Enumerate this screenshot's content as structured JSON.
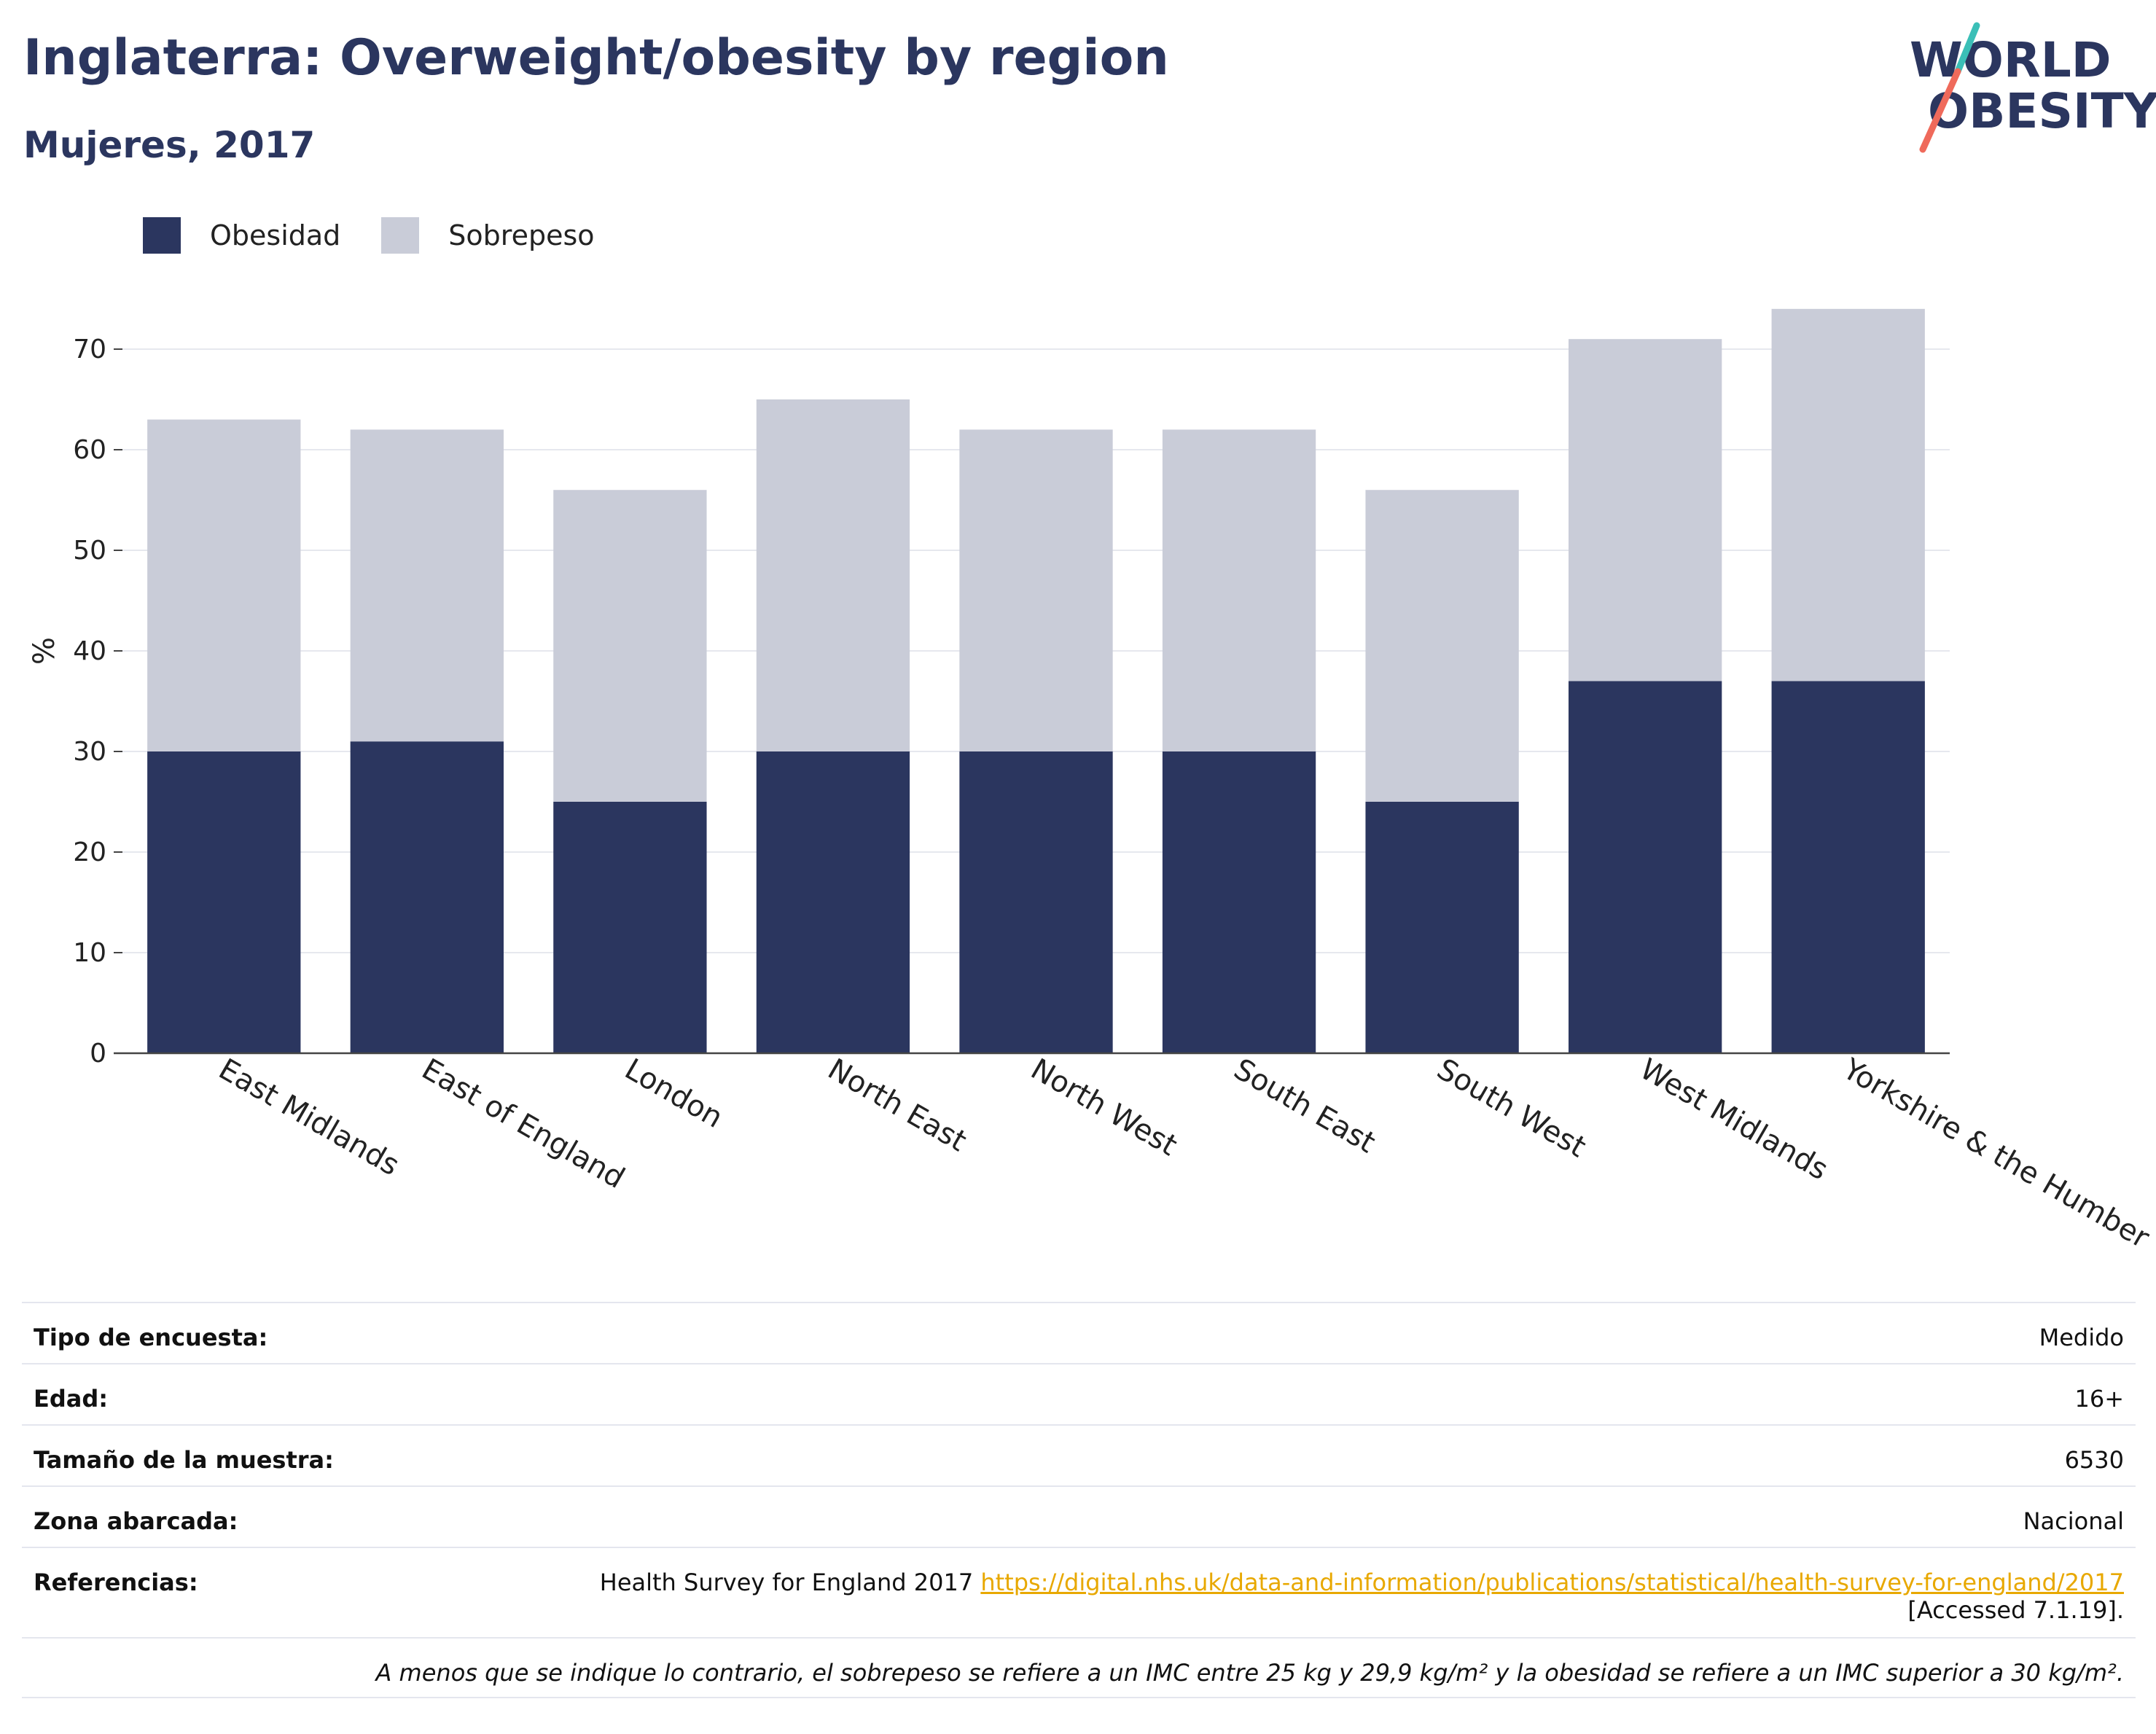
{
  "header": {
    "title": "Inglaterra: Overweight/obesity by region",
    "subtitle": "Mujeres, 2017"
  },
  "logo": {
    "line1": "WORLD",
    "line2": "OBESITY"
  },
  "legend": [
    {
      "label": "Obesidad",
      "color": "#2b365f"
    },
    {
      "label": "Sobrepeso",
      "color": "#c9ccd8"
    }
  ],
  "chart_data": {
    "type": "bar",
    "stacked": true,
    "categories": [
      "East Midlands",
      "East of England",
      "London",
      "North East",
      "North West",
      "South East",
      "South West",
      "West Midlands",
      "Yorkshire & the Humber"
    ],
    "series": [
      {
        "name": "Obesidad",
        "color": "#2b365f",
        "values": [
          30,
          31,
          25,
          30,
          30,
          30,
          25,
          37,
          37
        ]
      },
      {
        "name": "Sobrepeso",
        "color": "#c9ccd8",
        "values": [
          33,
          31,
          31,
          35,
          32,
          32,
          31,
          34,
          37
        ]
      }
    ],
    "ylabel": "%",
    "yticks": [
      0,
      10,
      20,
      30,
      40,
      50,
      60,
      70
    ],
    "ylim": [
      0,
      75
    ],
    "grid": true,
    "legend_position": "top-left"
  },
  "info": {
    "survey_type_label": "Tipo de encuesta:",
    "survey_type_value": "Medido",
    "age_label": "Edad:",
    "age_value": "16+",
    "sample_label": "Tamaño de la muestra:",
    "sample_value": "6530",
    "area_label": "Zona abarcada:",
    "area_value": "Nacional",
    "refs_label": "Referencias:",
    "refs_text": "Health Survey for England 2017",
    "refs_link": "https://digital.nhs.uk/data-and-information/publications/statistical/health-survey-for-england/2017",
    "refs_accessed": "[Accessed 7.1.19].",
    "note": "A menos que se indique lo contrario, el sobrepeso se refiere a un IMC entre 25 kg y 29,9 kg/m² y la obesidad se refiere a un IMC superior a 30 kg/m²."
  }
}
